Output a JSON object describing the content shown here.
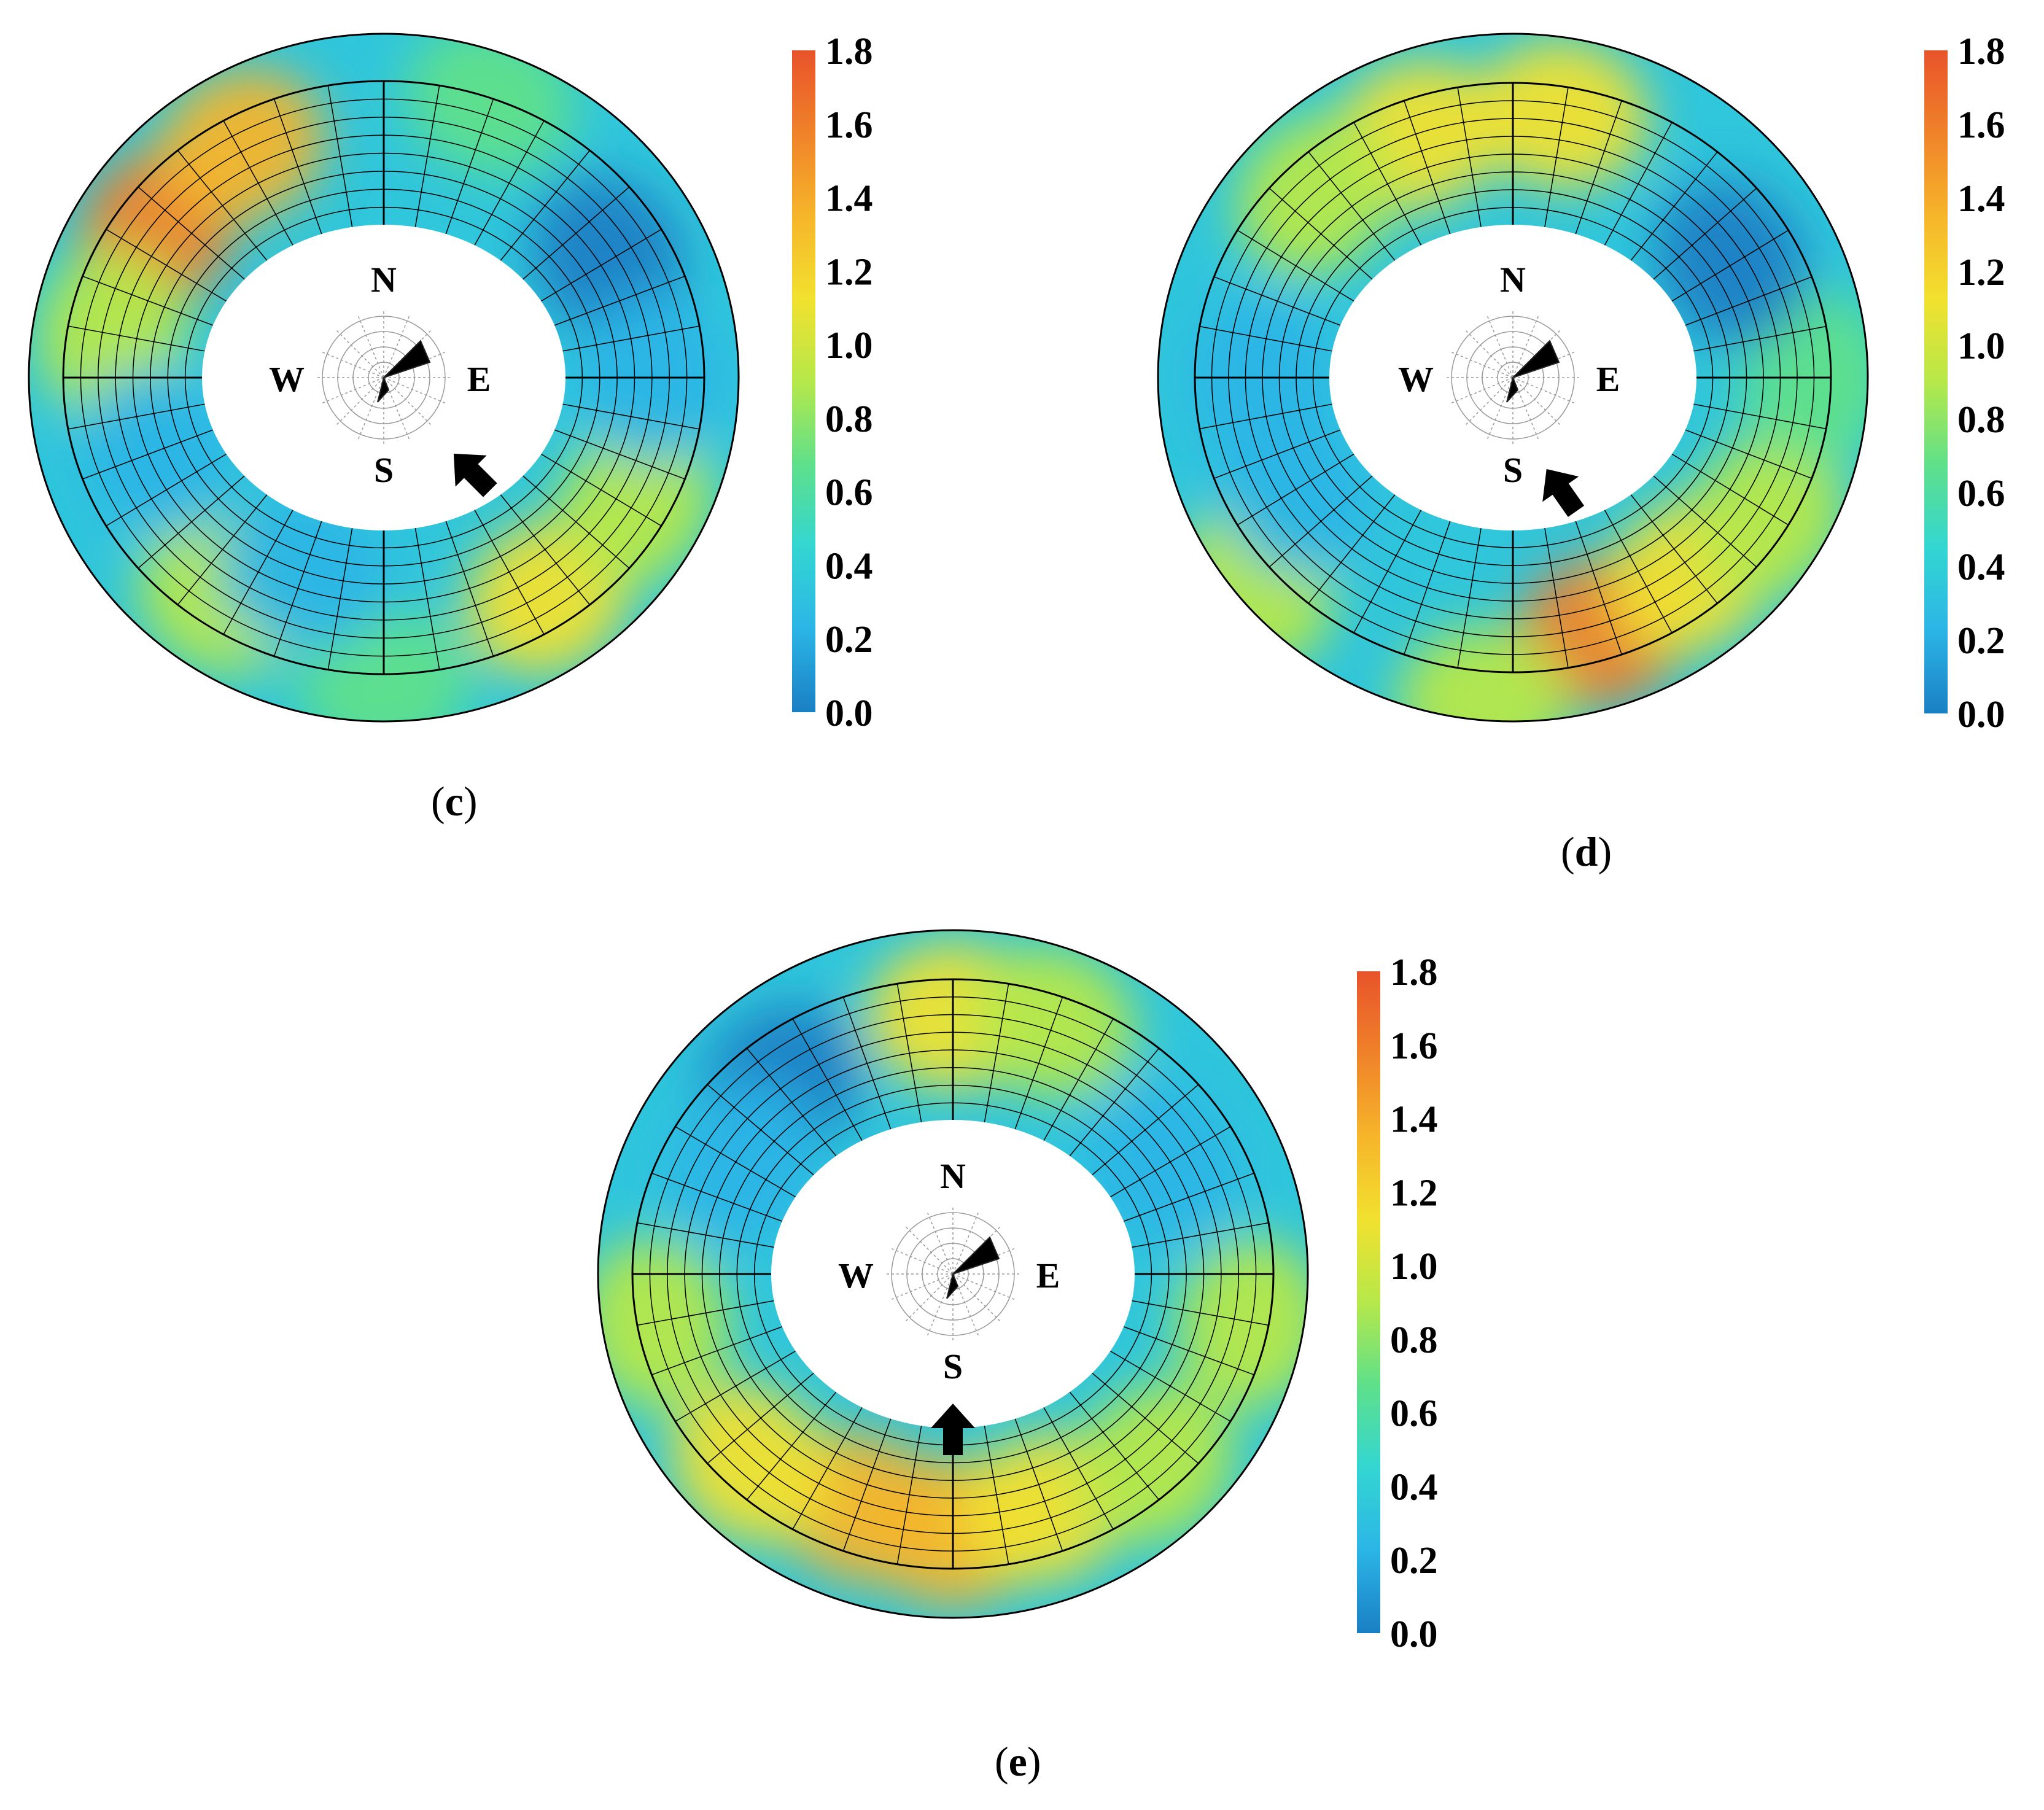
{
  "figure": {
    "panels": [
      {
        "id": "c",
        "caption_open": "(",
        "caption_letter": "c",
        "caption_close": ")",
        "arrow_direction": "NW"
      },
      {
        "id": "d",
        "caption_open": "(",
        "caption_letter": "d",
        "caption_close": ")",
        "arrow_direction": "NNW"
      },
      {
        "id": "e",
        "caption_open": "(",
        "caption_letter": "e",
        "caption_close": ")",
        "arrow_direction": "N"
      }
    ],
    "compass_labels": {
      "north": "N",
      "south": "S",
      "east": "E",
      "west": "W"
    }
  },
  "chart_data": [
    {
      "type": "heatmap",
      "panel": "c",
      "title": "",
      "colorbar": {
        "range": [
          0.0,
          1.8
        ],
        "ticks": [
          "0.0",
          "0.2",
          "0.4",
          "0.6",
          "0.8",
          "1.0",
          "1.2",
          "1.4",
          "1.6",
          "1.8"
        ],
        "colors": [
          "#1a7fc4",
          "#2bb5e6",
          "#33d6d2",
          "#5fe08a",
          "#b6e84a",
          "#f2e12e",
          "#f6b52a",
          "#f0822a",
          "#e8532a"
        ]
      },
      "hotspots": [
        {
          "bearing_deg": 305,
          "radial": 0.55,
          "value": 1.5
        },
        {
          "bearing_deg": 330,
          "radial": 0.6,
          "value": 1.25
        },
        {
          "bearing_deg": 280,
          "radial": 0.55,
          "value": 0.95
        },
        {
          "bearing_deg": 215,
          "radial": 0.6,
          "value": 1.0
        },
        {
          "bearing_deg": 180,
          "radial": 0.8,
          "value": 0.75
        },
        {
          "bearing_deg": 145,
          "radial": 0.6,
          "value": 1.05
        },
        {
          "bearing_deg": 118,
          "radial": 0.6,
          "value": 0.95
        },
        {
          "bearing_deg": 20,
          "radial": 0.75,
          "value": 0.6
        },
        {
          "bearing_deg": 60,
          "radial": 0.45,
          "value": 0.1
        },
        {
          "bearing_deg": 90,
          "radial": 0.5,
          "value": 0.15
        },
        {
          "bearing_deg": 200,
          "radial": 0.3,
          "value": 0.15
        },
        {
          "bearing_deg": 250,
          "radial": 0.35,
          "value": 0.2
        }
      ]
    },
    {
      "type": "heatmap",
      "panel": "d",
      "title": "",
      "colorbar": {
        "range": [
          0.0,
          1.8
        ],
        "ticks": [
          "0.0",
          "0.2",
          "0.4",
          "0.6",
          "0.8",
          "1.0",
          "1.2",
          "1.4",
          "1.6",
          "1.8"
        ],
        "colors": [
          "#1a7fc4",
          "#2bb5e6",
          "#33d6d2",
          "#5fe08a",
          "#b6e84a",
          "#f2e12e",
          "#f6b52a",
          "#f0822a",
          "#e8532a"
        ]
      },
      "hotspots": [
        {
          "bearing_deg": 162,
          "radial": 0.6,
          "value": 1.5
        },
        {
          "bearing_deg": 140,
          "radial": 0.55,
          "value": 1.2
        },
        {
          "bearing_deg": 120,
          "radial": 0.65,
          "value": 1.0
        },
        {
          "bearing_deg": 185,
          "radial": 0.9,
          "value": 0.8
        },
        {
          "bearing_deg": 230,
          "radial": 0.9,
          "value": 0.8
        },
        {
          "bearing_deg": 340,
          "radial": 0.55,
          "value": 1.1
        },
        {
          "bearing_deg": 10,
          "radial": 0.6,
          "value": 1.05
        },
        {
          "bearing_deg": 315,
          "radial": 0.55,
          "value": 0.9
        },
        {
          "bearing_deg": 90,
          "radial": 0.7,
          "value": 0.65
        },
        {
          "bearing_deg": 60,
          "radial": 0.4,
          "value": 0.1
        },
        {
          "bearing_deg": 270,
          "radial": 0.4,
          "value": 0.15
        },
        {
          "bearing_deg": 240,
          "radial": 0.4,
          "value": 0.2
        }
      ]
    },
    {
      "type": "heatmap",
      "panel": "e",
      "title": "",
      "colorbar": {
        "range": [
          0.0,
          1.8
        ],
        "ticks": [
          "0.0",
          "0.2",
          "0.4",
          "0.6",
          "0.8",
          "1.0",
          "1.2",
          "1.4",
          "1.6",
          "1.8"
        ],
        "colors": [
          "#1a7fc4",
          "#2bb5e6",
          "#33d6d2",
          "#5fe08a",
          "#b6e84a",
          "#f2e12e",
          "#f6b52a",
          "#f0822a",
          "#e8532a"
        ]
      },
      "hotspots": [
        {
          "bearing_deg": 180,
          "radial": 0.55,
          "value": 1.35
        },
        {
          "bearing_deg": 200,
          "radial": 0.5,
          "value": 1.3
        },
        {
          "bearing_deg": 160,
          "radial": 0.5,
          "value": 1.2
        },
        {
          "bearing_deg": 225,
          "radial": 0.6,
          "value": 1.05
        },
        {
          "bearing_deg": 135,
          "radial": 0.6,
          "value": 1.0
        },
        {
          "bearing_deg": 260,
          "radial": 0.7,
          "value": 1.0
        },
        {
          "bearing_deg": 100,
          "radial": 0.7,
          "value": 0.95
        },
        {
          "bearing_deg": 0,
          "radial": 0.55,
          "value": 1.1
        },
        {
          "bearing_deg": 20,
          "radial": 0.6,
          "value": 1.0
        },
        {
          "bearing_deg": 320,
          "radial": 0.5,
          "value": 0.1
        },
        {
          "bearing_deg": 60,
          "radial": 0.35,
          "value": 0.15
        },
        {
          "bearing_deg": 300,
          "radial": 0.35,
          "value": 0.2
        }
      ]
    }
  ]
}
